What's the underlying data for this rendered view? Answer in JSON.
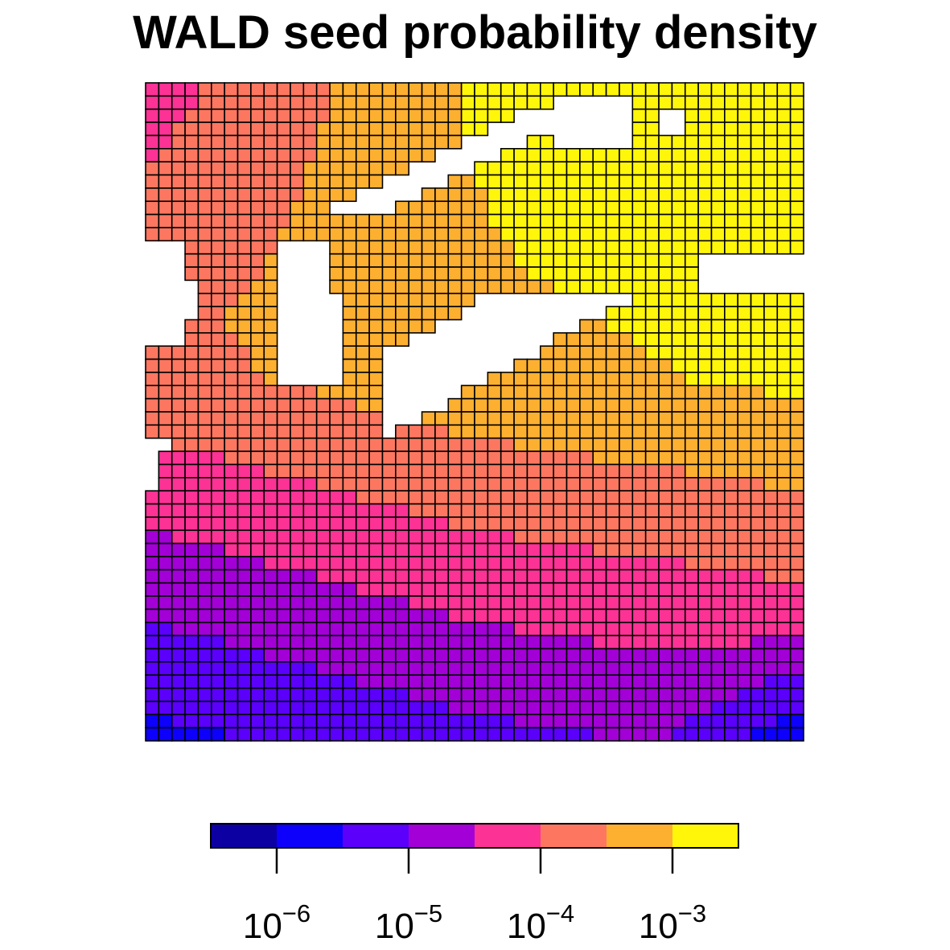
{
  "chart_data": {
    "type": "heatmap",
    "title": "WALD seed probability density",
    "grid": {
      "columns": 50,
      "rows": 50
    },
    "scale": "log10",
    "color_bins": [
      {
        "lo": 3.16e-07,
        "hi": 1e-06,
        "color": "#0c00a3"
      },
      {
        "lo": 1e-06,
        "hi": 3.16e-06,
        "color": "#0d00fb"
      },
      {
        "lo": 3.16e-06,
        "hi": 1e-05,
        "color": "#5a00fb"
      },
      {
        "lo": 1e-05,
        "hi": 3.16e-05,
        "color": "#a200d6"
      },
      {
        "lo": 3.16e-05,
        "hi": 0.0001,
        "color": "#fc3295"
      },
      {
        "lo": 0.0001,
        "hi": 0.000316,
        "color": "#fd7760"
      },
      {
        "lo": 0.000316,
        "hi": 0.001,
        "color": "#fdb030"
      },
      {
        "lo": 0.001,
        "hi": 0.00316,
        "color": "#fff60a"
      }
    ],
    "legend": {
      "placement": "bottom",
      "ticks": [
        {
          "base": "10",
          "exp": "−6"
        },
        {
          "base": "10",
          "exp": "−5"
        },
        {
          "base": "10",
          "exp": "−4"
        },
        {
          "base": "10",
          "exp": "−3"
        }
      ]
    }
  }
}
